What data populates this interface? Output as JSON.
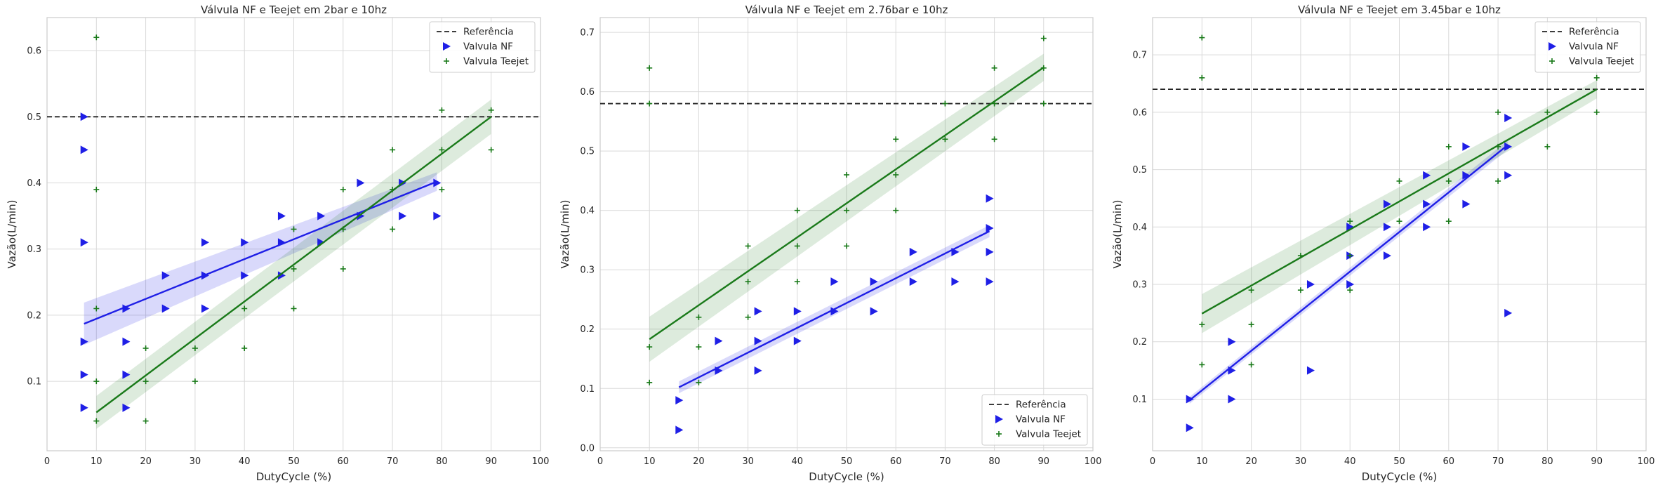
{
  "colors": {
    "nf": "#1f1fe6",
    "teejet": "#1a7a1a",
    "reference": "#222222",
    "grid": "#d9d9d9",
    "frame": "#cccccc"
  },
  "chart_data": [
    {
      "type": "scatter",
      "title": "Válvula NF e Teejet em 2bar e 10hz",
      "xlabel": "DutyCycle (%)",
      "ylabel": "Vazão(L/min)",
      "xlim": [
        0,
        100
      ],
      "ylim": [
        -0.005,
        0.65
      ],
      "xticks": [
        "0",
        "10",
        "20",
        "30",
        "40",
        "50",
        "60",
        "70",
        "80",
        "90",
        "100"
      ],
      "yticks": [
        "0.1",
        "0.2",
        "0.3",
        "0.4",
        "0.5",
        "0.6"
      ],
      "grid": true,
      "legend": {
        "placement": "top-right",
        "entries": [
          "Referência",
          "Valvula NF",
          "Valvula Teejet"
        ]
      },
      "reference": 0.5,
      "series": [
        {
          "name": "Valvula NF",
          "marker": "triangle-right",
          "points": [
            [
              7.5,
              0.5
            ],
            [
              7.5,
              0.45
            ],
            [
              7.5,
              0.31
            ],
            [
              7.5,
              0.16
            ],
            [
              7.5,
              0.11
            ],
            [
              7.5,
              0.06
            ],
            [
              16,
              0.21
            ],
            [
              16,
              0.16
            ],
            [
              16,
              0.11
            ],
            [
              16,
              0.06
            ],
            [
              24,
              0.26
            ],
            [
              24,
              0.21
            ],
            [
              32,
              0.31
            ],
            [
              32,
              0.26
            ],
            [
              32,
              0.21
            ],
            [
              40,
              0.31
            ],
            [
              40,
              0.26
            ],
            [
              47.5,
              0.35
            ],
            [
              47.5,
              0.31
            ],
            [
              47.5,
              0.26
            ],
            [
              55.5,
              0.35
            ],
            [
              55.5,
              0.31
            ],
            [
              63.5,
              0.4
            ],
            [
              63.5,
              0.35
            ],
            [
              72,
              0.4
            ],
            [
              72,
              0.35
            ],
            [
              79,
              0.4
            ],
            [
              79,
              0.35
            ]
          ],
          "fit": {
            "x": [
              7.5,
              79
            ],
            "y": [
              0.187,
              0.402
            ],
            "ci_low": [
              0.155,
              0.388
            ],
            "ci_high": [
              0.219,
              0.416
            ]
          }
        },
        {
          "name": "Valvula Teejet",
          "marker": "plus",
          "points": [
            [
              10,
              0.62
            ],
            [
              10,
              0.39
            ],
            [
              10,
              0.21
            ],
            [
              10,
              0.1
            ],
            [
              10,
              0.04
            ],
            [
              20,
              0.15
            ],
            [
              20,
              0.1
            ],
            [
              20,
              0.04
            ],
            [
              30,
              0.15
            ],
            [
              30,
              0.1
            ],
            [
              40,
              0.21
            ],
            [
              40,
              0.15
            ],
            [
              50,
              0.33
            ],
            [
              50,
              0.27
            ],
            [
              50,
              0.21
            ],
            [
              60,
              0.39
            ],
            [
              60,
              0.33
            ],
            [
              60,
              0.27
            ],
            [
              70,
              0.45
            ],
            [
              70,
              0.39
            ],
            [
              70,
              0.33
            ],
            [
              80,
              0.51
            ],
            [
              80,
              0.45
            ],
            [
              80,
              0.39
            ],
            [
              90,
              0.51
            ],
            [
              90,
              0.45
            ]
          ],
          "fit": {
            "x": [
              10,
              90
            ],
            "y": [
              0.053,
              0.5
            ],
            "ci_low": [
              0.028,
              0.474
            ],
            "ci_high": [
              0.078,
              0.526
            ]
          }
        }
      ]
    },
    {
      "type": "scatter",
      "title": "Válvula NF e Teejet em 2.76bar e 10hz",
      "xlabel": "DutyCycle (%)",
      "ylabel": "Vazão(L/min)",
      "xlim": [
        0,
        100
      ],
      "ylim": [
        -0.005,
        0.725
      ],
      "xticks": [
        "0",
        "10",
        "20",
        "30",
        "40",
        "50",
        "60",
        "70",
        "80",
        "90",
        "100"
      ],
      "yticks": [
        "0.0",
        "0.1",
        "0.2",
        "0.3",
        "0.4",
        "0.5",
        "0.6",
        "0.7"
      ],
      "grid": true,
      "legend": {
        "placement": "bottom-right",
        "entries": [
          "Referência",
          "Valvula NF",
          "Valvula Teejet"
        ]
      },
      "reference": 0.58,
      "series": [
        {
          "name": "Valvula NF",
          "marker": "triangle-right",
          "points": [
            [
              16,
              0.08
            ],
            [
              16,
              0.03
            ],
            [
              24,
              0.18
            ],
            [
              24,
              0.13
            ],
            [
              32,
              0.23
            ],
            [
              32,
              0.18
            ],
            [
              32,
              0.13
            ],
            [
              40,
              0.23
            ],
            [
              40,
              0.18
            ],
            [
              47.5,
              0.28
            ],
            [
              47.5,
              0.23
            ],
            [
              55.5,
              0.28
            ],
            [
              55.5,
              0.23
            ],
            [
              63.5,
              0.33
            ],
            [
              63.5,
              0.28
            ],
            [
              72,
              0.33
            ],
            [
              72,
              0.28
            ],
            [
              79,
              0.42
            ],
            [
              79,
              0.37
            ],
            [
              79,
              0.33
            ],
            [
              79,
              0.28
            ]
          ],
          "fit": {
            "x": [
              16,
              79
            ],
            "y": [
              0.102,
              0.365
            ],
            "ci_low": [
              0.092,
              0.355
            ],
            "ci_high": [
              0.112,
              0.375
            ]
          }
        },
        {
          "name": "Valvula Teejet",
          "marker": "plus",
          "points": [
            [
              10,
              0.64
            ],
            [
              10,
              0.58
            ],
            [
              10,
              0.17
            ],
            [
              10,
              0.11
            ],
            [
              20,
              0.22
            ],
            [
              20,
              0.17
            ],
            [
              20,
              0.11
            ],
            [
              30,
              0.34
            ],
            [
              30,
              0.28
            ],
            [
              30,
              0.22
            ],
            [
              40,
              0.4
            ],
            [
              40,
              0.34
            ],
            [
              40,
              0.28
            ],
            [
              50,
              0.46
            ],
            [
              50,
              0.4
            ],
            [
              50,
              0.34
            ],
            [
              60,
              0.52
            ],
            [
              60,
              0.46
            ],
            [
              60,
              0.4
            ],
            [
              70,
              0.58
            ],
            [
              70,
              0.52
            ],
            [
              80,
              0.64
            ],
            [
              80,
              0.58
            ],
            [
              80,
              0.52
            ],
            [
              90,
              0.69
            ],
            [
              90,
              0.64
            ],
            [
              90,
              0.58
            ]
          ],
          "fit": {
            "x": [
              10,
              90
            ],
            "y": [
              0.183,
              0.641
            ],
            "ci_low": [
              0.145,
              0.618
            ],
            "ci_high": [
              0.221,
              0.664
            ]
          }
        }
      ]
    },
    {
      "type": "scatter",
      "title": "Válvula NF e Teejet em 3.45bar e 10hz",
      "xlabel": "DutyCycle (%)",
      "ylabel": "Vazão(L/min)",
      "xlim": [
        0,
        100
      ],
      "ylim": [
        0.01,
        0.765
      ],
      "xticks": [
        "0",
        "10",
        "20",
        "30",
        "40",
        "50",
        "60",
        "70",
        "80",
        "90",
        "100"
      ],
      "yticks": [
        "0.1",
        "0.2",
        "0.3",
        "0.4",
        "0.5",
        "0.6",
        "0.7"
      ],
      "grid": true,
      "legend": {
        "placement": "top-right",
        "entries": [
          "Referência",
          "Valvula NF",
          "Valvula Teejet"
        ]
      },
      "reference": 0.64,
      "series": [
        {
          "name": "Valvula NF",
          "marker": "triangle-right",
          "points": [
            [
              7.5,
              0.1
            ],
            [
              7.5,
              0.05
            ],
            [
              16,
              0.2
            ],
            [
              16,
              0.15
            ],
            [
              16,
              0.1
            ],
            [
              32,
              0.3
            ],
            [
              32,
              0.15
            ],
            [
              40,
              0.4
            ],
            [
              40,
              0.35
            ],
            [
              40,
              0.3
            ],
            [
              47.5,
              0.44
            ],
            [
              47.5,
              0.4
            ],
            [
              47.5,
              0.35
            ],
            [
              55.5,
              0.49
            ],
            [
              55.5,
              0.44
            ],
            [
              55.5,
              0.4
            ],
            [
              63.5,
              0.54
            ],
            [
              63.5,
              0.49
            ],
            [
              63.5,
              0.44
            ],
            [
              72,
              0.59
            ],
            [
              72,
              0.54
            ],
            [
              72,
              0.49
            ],
            [
              72,
              0.25
            ]
          ],
          "fit": {
            "x": [
              7.5,
              72
            ],
            "y": [
              0.098,
              0.543
            ],
            "ci_low": [
              0.092,
              0.535
            ],
            "ci_high": [
              0.104,
              0.551
            ]
          }
        },
        {
          "name": "Valvula Teejet",
          "marker": "plus",
          "points": [
            [
              10,
              0.73
            ],
            [
              10,
              0.66
            ],
            [
              10,
              0.23
            ],
            [
              10,
              0.16
            ],
            [
              20,
              0.29
            ],
            [
              20,
              0.23
            ],
            [
              20,
              0.16
            ],
            [
              30,
              0.35
            ],
            [
              30,
              0.29
            ],
            [
              40,
              0.41
            ],
            [
              40,
              0.35
            ],
            [
              40,
              0.29
            ],
            [
              50,
              0.48
            ],
            [
              50,
              0.41
            ],
            [
              60,
              0.54
            ],
            [
              60,
              0.48
            ],
            [
              60,
              0.41
            ],
            [
              70,
              0.6
            ],
            [
              70,
              0.54
            ],
            [
              70,
              0.48
            ],
            [
              80,
              0.6
            ],
            [
              80,
              0.54
            ],
            [
              90,
              0.66
            ],
            [
              90,
              0.6
            ]
          ],
          "fit": {
            "x": [
              10,
              90
            ],
            "y": [
              0.249,
              0.64
            ],
            "ci_low": [
              0.215,
              0.624
            ],
            "ci_high": [
              0.283,
              0.656
            ]
          }
        }
      ]
    }
  ]
}
